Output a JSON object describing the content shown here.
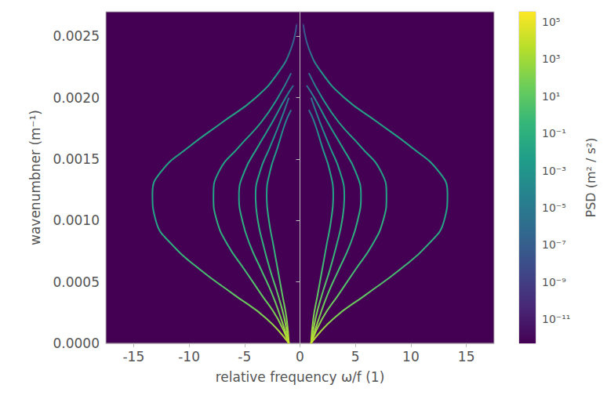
{
  "chart_data": {
    "type": "line",
    "x_label": "relative frequency ω/f (1)",
    "y_label": "wavenumbner (m⁻¹)",
    "xlim": [
      -17.5,
      17.5
    ],
    "xticks": [
      -15,
      -10,
      -5,
      0,
      5,
      10,
      15
    ],
    "ylim": [
      0,
      0.0027
    ],
    "yticks": [
      {
        "value": 0,
        "label": "0.0000"
      },
      {
        "value": 0.0005,
        "label": "0.0005"
      },
      {
        "value": 0.001,
        "label": "0.0010"
      },
      {
        "value": 0.0015,
        "label": "0.0015"
      },
      {
        "value": 0.002,
        "label": "0.0020"
      },
      {
        "value": 0.0025,
        "label": "0.0025"
      }
    ],
    "grid": false,
    "colorbar": {
      "label": "PSD (m² / s²)",
      "range": [
        5e-13,
        350000.0
      ],
      "log": true,
      "ticks": [
        {
          "value": 100000.0,
          "label": "10⁵"
        },
        {
          "value": 1000.0,
          "label": "10³"
        },
        {
          "value": 10.0,
          "label": "10¹"
        },
        {
          "value": 0.1,
          "label": "10⁻¹"
        },
        {
          "value": 0.001,
          "label": "10⁻³"
        },
        {
          "value": 1e-05,
          "label": "10⁻⁵"
        },
        {
          "value": 1e-07,
          "label": "10⁻⁷"
        },
        {
          "value": 1e-09,
          "label": "10⁻⁹"
        },
        {
          "value": 1e-11,
          "label": "10⁻¹¹"
        }
      ]
    },
    "series": [
      {
        "x": [
          1,
          3,
          6,
          9,
          11.5,
          13,
          13.3,
          12.5,
          10,
          7,
          4,
          2,
          0.8,
          0.3
        ],
        "values": [
          0,
          0.0002,
          0.0004,
          0.0006,
          0.0008,
          0.001,
          0.00122,
          0.0014,
          0.0016,
          0.0018,
          0.002,
          0.0022,
          0.0024,
          0.0026
        ],
        "psd": [
          10000.0,
          100.0,
          10.0,
          1.0,
          0.1,
          0.01,
          0.01,
          0.01,
          0.01,
          0.01,
          0.01,
          0.001,
          1e-06,
          1e-08
        ]
      },
      {
        "x": [
          -1,
          -3,
          -6,
          -9,
          -11.5,
          -13,
          -13.3,
          -12.5,
          -10,
          -7,
          -4,
          -2,
          -0.8,
          -0.3
        ],
        "values": [
          0,
          0.0002,
          0.0004,
          0.0006,
          0.0008,
          0.001,
          0.00122,
          0.0014,
          0.0016,
          0.0018,
          0.002,
          0.0022,
          0.0024,
          0.0026
        ],
        "psd": [
          10000.0,
          100.0,
          10.0,
          1.0,
          0.1,
          0.01,
          0.01,
          0.01,
          0.01,
          0.01,
          0.01,
          0.001,
          1e-06,
          1e-08
        ]
      },
      {
        "x": [
          1,
          2,
          3.5,
          5,
          6.5,
          7.5,
          7.8,
          7.3,
          5.5,
          3.5,
          2,
          0.8
        ],
        "values": [
          0,
          0.0002,
          0.0004,
          0.0006,
          0.0008,
          0.001,
          0.0012,
          0.0014,
          0.0016,
          0.0018,
          0.002,
          0.0022
        ],
        "psd": [
          10000.0,
          100.0,
          10.0,
          1.0,
          0.1,
          0.1,
          0.01,
          0.01,
          0.01,
          0.01,
          0.001,
          1e-06
        ]
      },
      {
        "x": [
          -1,
          -2,
          -3.5,
          -5,
          -6.5,
          -7.5,
          -7.8,
          -7.3,
          -5.5,
          -3.5,
          -2,
          -0.8
        ],
        "values": [
          0,
          0.0002,
          0.0004,
          0.0006,
          0.0008,
          0.001,
          0.0012,
          0.0014,
          0.0016,
          0.0018,
          0.002,
          0.0022
        ],
        "psd": [
          10000.0,
          100.0,
          10.0,
          1.0,
          0.1,
          0.1,
          0.01,
          0.01,
          0.01,
          0.01,
          0.001,
          1e-06
        ]
      },
      {
        "x": [
          1,
          1.7,
          2.5,
          3.5,
          4.5,
          5.2,
          5.5,
          5,
          3.8,
          2.5,
          1.3,
          0.6
        ],
        "values": [
          0,
          0.0002,
          0.0004,
          0.0006,
          0.0008,
          0.001,
          0.0012,
          0.0014,
          0.0016,
          0.0018,
          0.002,
          0.0021
        ],
        "psd": [
          10000.0,
          100.0,
          10.0,
          1.0,
          0.1,
          0.1,
          0.01,
          0.01,
          0.01,
          0.001,
          0.0001,
          1e-06
        ]
      },
      {
        "x": [
          -1,
          -1.7,
          -2.5,
          -3.5,
          -4.5,
          -5.2,
          -5.5,
          -5,
          -3.8,
          -2.5,
          -1.3,
          -0.6
        ],
        "values": [
          0,
          0.0002,
          0.0004,
          0.0006,
          0.0008,
          0.001,
          0.0012,
          0.0014,
          0.0016,
          0.0018,
          0.002,
          0.0021
        ],
        "psd": [
          10000.0,
          100.0,
          10.0,
          1.0,
          0.1,
          0.1,
          0.01,
          0.01,
          0.01,
          0.001,
          0.0001,
          1e-06
        ]
      },
      {
        "x": [
          1,
          1.4,
          2,
          2.7,
          3.3,
          3.8,
          4,
          3.6,
          2.7,
          1.8,
          1
        ],
        "values": [
          0,
          0.0002,
          0.0004,
          0.0006,
          0.0008,
          0.001,
          0.0012,
          0.0014,
          0.0016,
          0.0018,
          0.002
        ],
        "psd": [
          10000.0,
          100.0,
          10.0,
          1.0,
          0.1,
          0.1,
          0.01,
          0.01,
          0.001,
          0.0001,
          1e-06
        ]
      },
      {
        "x": [
          -1,
          -1.4,
          -2,
          -2.7,
          -3.3,
          -3.8,
          -4,
          -3.6,
          -2.7,
          -1.8,
          -1
        ],
        "values": [
          0,
          0.0002,
          0.0004,
          0.0006,
          0.0008,
          0.001,
          0.0012,
          0.0014,
          0.0016,
          0.0018,
          0.002
        ],
        "psd": [
          10000.0,
          100.0,
          10.0,
          1.0,
          0.1,
          0.1,
          0.01,
          0.01,
          0.001,
          0.0001,
          1e-06
        ]
      },
      {
        "x": [
          1,
          1.2,
          1.6,
          2,
          2.4,
          2.8,
          3,
          2.7,
          2,
          1.3,
          0.8
        ],
        "values": [
          0,
          0.0002,
          0.0004,
          0.0006,
          0.0008,
          0.001,
          0.0012,
          0.0014,
          0.0016,
          0.0018,
          0.0019
        ],
        "psd": [
          10000.0,
          100.0,
          10.0,
          1.0,
          0.1,
          0.1,
          0.01,
          0.01,
          0.001,
          0.0001,
          1e-06
        ]
      },
      {
        "x": [
          -1,
          -1.2,
          -1.6,
          -2,
          -2.4,
          -2.8,
          -3,
          -2.7,
          -2,
          -1.3,
          -0.8
        ],
        "values": [
          0,
          0.0002,
          0.0004,
          0.0006,
          0.0008,
          0.001,
          0.0012,
          0.0014,
          0.0016,
          0.0018,
          0.0019
        ],
        "psd": [
          10000.0,
          100.0,
          10.0,
          1.0,
          0.1,
          0.1,
          0.01,
          0.01,
          0.001,
          0.0001,
          1e-06
        ]
      }
    ]
  }
}
